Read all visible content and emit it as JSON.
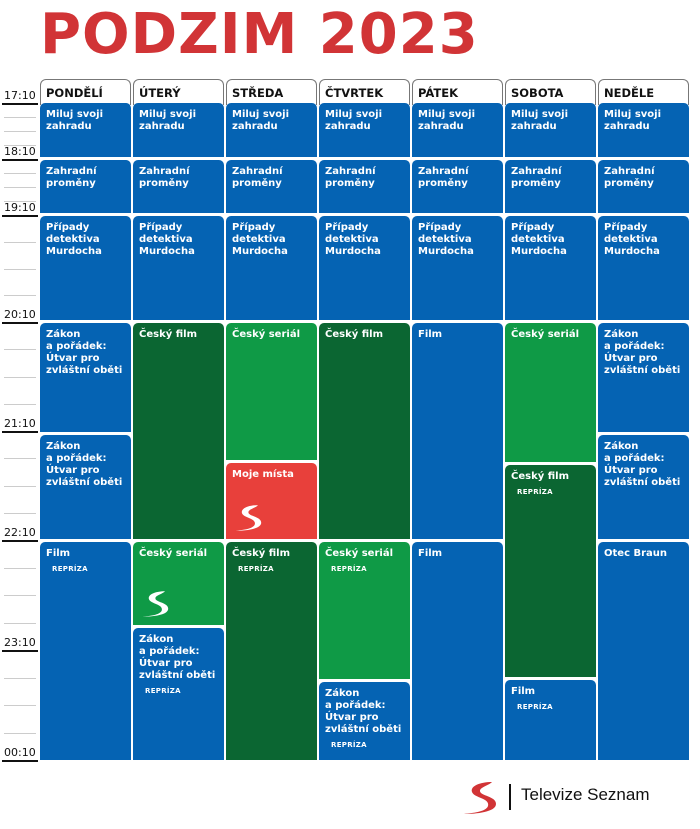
{
  "title": "PODZIM 2023",
  "times": [
    "17:10",
    "18:10",
    "19:10",
    "20:10",
    "21:10",
    "22:10",
    "23:10",
    "00:10"
  ],
  "colors": {
    "blue": "#0563b3",
    "darkgreen": "#0b6632",
    "green": "#0f9a46",
    "red": "#e8403b",
    "title": "#d13436"
  },
  "days": [
    {
      "name": "PONDĚLÍ",
      "programs": [
        {
          "title": "Miluj svoji\nzahradu",
          "type": "blue"
        },
        {
          "title": "Zahradní\nproměny",
          "type": "blue"
        },
        {
          "title": "Případy\ndetektiva\nMurdocha",
          "type": "blue"
        },
        {
          "title": "Zákon\na pořádek:\nÚtvar pro\nzvláštní oběti",
          "type": "blue"
        },
        {
          "title": "Zákon\na pořádek:\nÚtvar pro\nzvláštní oběti",
          "type": "blue"
        },
        {
          "title": "Film",
          "repriza": "REPRÍZA",
          "type": "blue"
        }
      ]
    },
    {
      "name": "ÚTERÝ",
      "programs": [
        {
          "title": "Miluj svoji\nzahradu",
          "type": "blue"
        },
        {
          "title": "Zahradní\nproměny",
          "type": "blue"
        },
        {
          "title": "Případy\ndetektiva\nMurdocha",
          "type": "blue"
        },
        {
          "title": "Český film",
          "type": "darkgreen"
        },
        {
          "title": "Český seriál",
          "type": "green",
          "logo": "seznam-s-logo"
        },
        {
          "title": "Zákon\na pořádek:\nÚtvar pro\nzvláštní oběti",
          "repriza": "REPRÍZA",
          "type": "blue"
        }
      ]
    },
    {
      "name": "STŘEDA",
      "programs": [
        {
          "title": "Miluj svoji\nzahradu",
          "type": "blue"
        },
        {
          "title": "Zahradní\nproměny",
          "type": "blue"
        },
        {
          "title": "Případy\ndetektiva\nMurdocha",
          "type": "blue"
        },
        {
          "title": "Český seriál",
          "type": "green"
        },
        {
          "title": "Moje místa",
          "type": "red",
          "logo": "seznam-s-logo"
        },
        {
          "title": "Český film",
          "repriza": "REPRÍZA",
          "type": "darkgreen"
        }
      ]
    },
    {
      "name": "ČTVRTEK",
      "programs": [
        {
          "title": "Miluj svoji\nzahradu",
          "type": "blue"
        },
        {
          "title": "Zahradní\nproměny",
          "type": "blue"
        },
        {
          "title": "Případy\ndetektiva\nMurdocha",
          "type": "blue"
        },
        {
          "title": "Český film",
          "type": "darkgreen"
        },
        {
          "title": "Český seriál",
          "repriza": "REPRÍZA",
          "type": "green"
        },
        {
          "title": "Zákon\na pořádek:\nÚtvar pro\nzvláštní oběti",
          "repriza": "REPRÍZA",
          "type": "blue"
        }
      ]
    },
    {
      "name": "PÁTEK",
      "programs": [
        {
          "title": "Miluj svoji\nzahradu",
          "type": "blue"
        },
        {
          "title": "Zahradní\nproměny",
          "type": "blue"
        },
        {
          "title": "Případy\ndetektiva\nMurdocha",
          "type": "blue"
        },
        {
          "title": "Film",
          "type": "blue"
        },
        {
          "title": "Film",
          "type": "blue"
        }
      ]
    },
    {
      "name": "SOBOTA",
      "programs": [
        {
          "title": "Miluj svoji\nzahradu",
          "type": "blue"
        },
        {
          "title": "Zahradní\nproměny",
          "type": "blue"
        },
        {
          "title": "Případy\ndetektiva\nMurdocha",
          "type": "blue"
        },
        {
          "title": "Český seriál",
          "type": "green"
        },
        {
          "title": "Český film",
          "repriza": "REPRÍZA",
          "type": "darkgreen"
        },
        {
          "title": "Film",
          "repriza": "REPRÍZA",
          "type": "blue"
        }
      ]
    },
    {
      "name": "NEDĚLE",
      "programs": [
        {
          "title": "Miluj svoji\nzahradu",
          "type": "blue"
        },
        {
          "title": "Zahradní\nproměny",
          "type": "blue"
        },
        {
          "title": "Případy\ndetektiva\nMurdocha",
          "type": "blue"
        },
        {
          "title": "Zákon\na pořádek:\nÚtvar pro\nzvláštní oběti",
          "type": "blue"
        },
        {
          "title": "Zákon\na pořádek:\nÚtvar pro\nzvláštní oběti",
          "type": "blue"
        },
        {
          "title": "Otec Braun",
          "type": "blue"
        }
      ]
    }
  ],
  "brand": {
    "name": "Televize Seznam",
    "logo": "seznam-s-logo"
  }
}
